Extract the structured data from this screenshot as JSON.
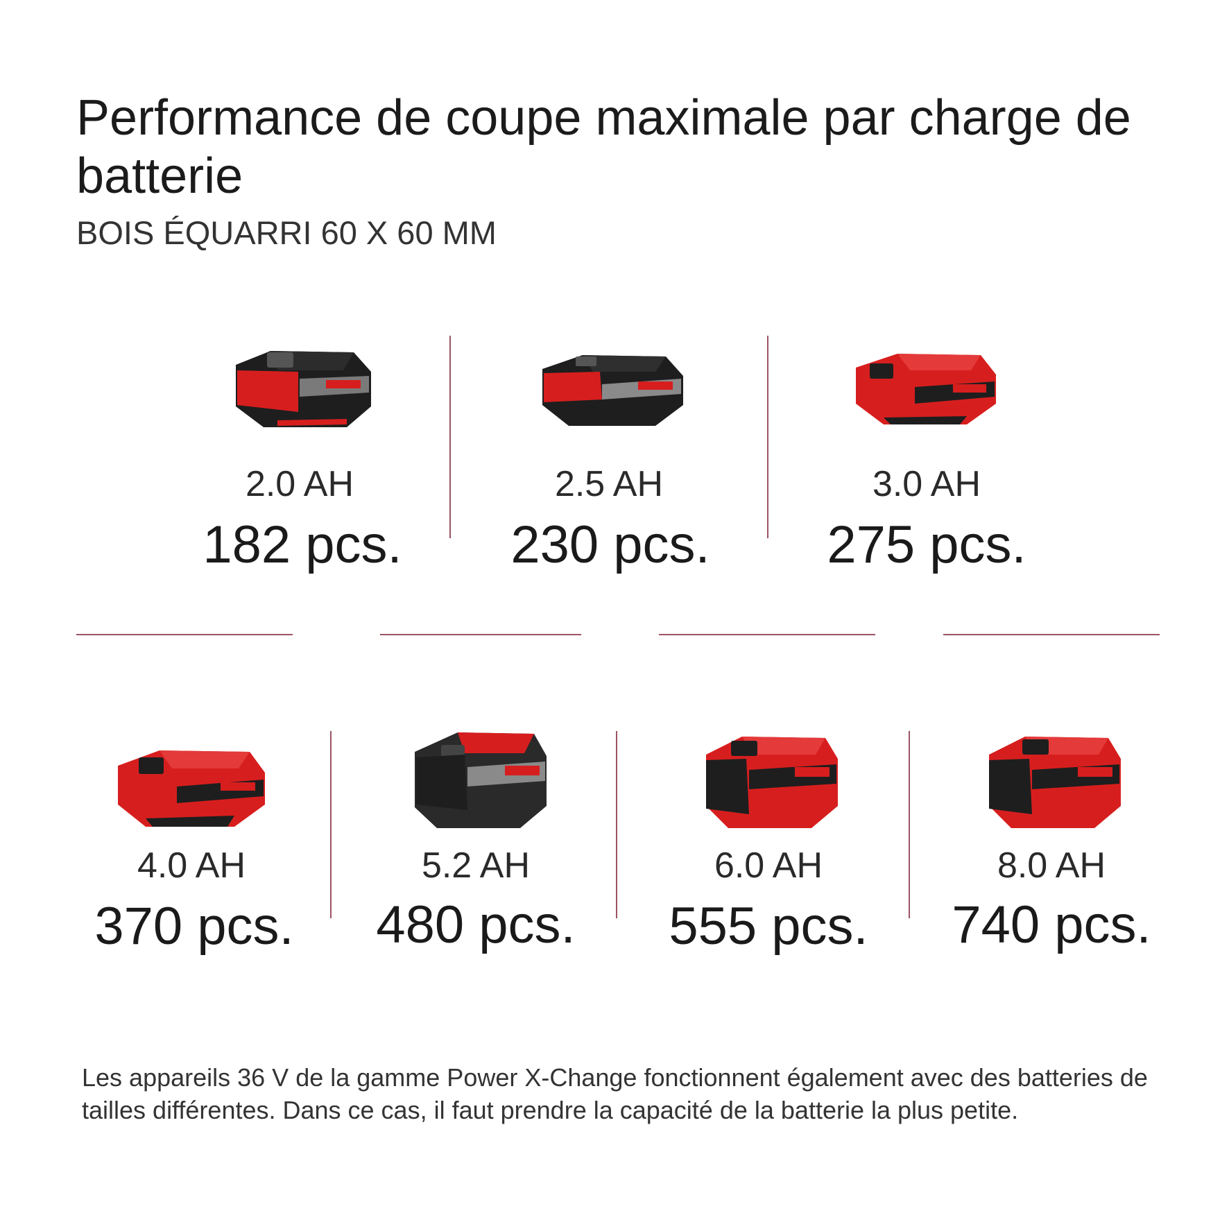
{
  "header": {
    "title": "Performance de coupe maximale par charge de batterie",
    "subtitle": "BOIS ÉQUARRI 60 X 60 MM"
  },
  "batteries": [
    {
      "capacity": "2.0 AH",
      "pieces": "182 pcs.",
      "body_color": "#1e1e1e"
    },
    {
      "capacity": "2.5 AH",
      "pieces": "230 pcs.",
      "body_color": "#1e1e1e"
    },
    {
      "capacity": "3.0 AH",
      "pieces": "275 pcs.",
      "body_color": "#d71e1e"
    },
    {
      "capacity": "4.0 AH",
      "pieces": "370 pcs.",
      "body_color": "#d71e1e"
    },
    {
      "capacity": "5.2 AH",
      "pieces": "480 pcs.",
      "body_color": "#2a2a2a"
    },
    {
      "capacity": "6.0 AH",
      "pieces": "555 pcs.",
      "body_color": "#d71e1e"
    },
    {
      "capacity": "8.0 AH",
      "pieces": "740 pcs.",
      "body_color": "#d71e1e"
    }
  ],
  "footnote": "Les appareils 36 V de la gamme Power X-Change fonctionnent également avec des batteries de tailles différentes. Dans ce cas, il faut prendre la capacité de la batterie la plus petite.",
  "colors": {
    "accent": "#c4161c",
    "divider": "#9b5362"
  }
}
